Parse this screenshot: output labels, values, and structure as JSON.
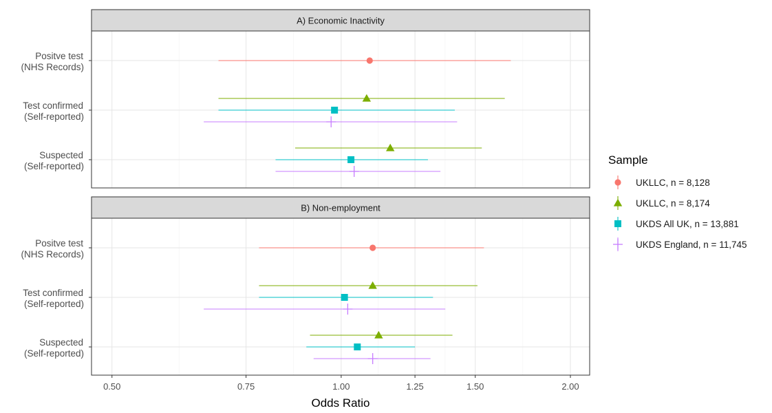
{
  "chart_data": {
    "type": "forest",
    "xlabel": "Odds Ratio",
    "x_scale": "log",
    "xlim": [
      0.47,
      2.12
    ],
    "x_ticks": [
      {
        "value": 0.5,
        "label": "0.50"
      },
      {
        "value": 0.75,
        "label": "0.75"
      },
      {
        "value": 1.0,
        "label": "1.00"
      },
      {
        "value": 1.25,
        "label": "1.25"
      },
      {
        "value": 1.5,
        "label": "1.50"
      },
      {
        "value": 2.0,
        "label": "2.00"
      }
    ],
    "grid": true,
    "legend": {
      "title": "Sample",
      "position": "right",
      "entries": [
        {
          "label": "UKLLC, n = 8,128",
          "color": "#F8766D",
          "shape": "circle"
        },
        {
          "label": "UKLLC, n = 8,174",
          "color": "#7CAE00",
          "shape": "triangle"
        },
        {
          "label": "UKDS All UK, n = 13,881",
          "color": "#00BFC4",
          "shape": "square"
        },
        {
          "label": "UKDS England, n = 11,745",
          "color": "#C77CFF",
          "shape": "plus"
        }
      ]
    },
    "categories": [
      {
        "line1": "Positve test",
        "line2": "(NHS Records)"
      },
      {
        "line1": "Test confirmed",
        "line2": "(Self-reported)"
      },
      {
        "line1": "Suspected",
        "line2": "(Self-reported)"
      }
    ],
    "panels": [
      {
        "title": "A) Economic Inactivity",
        "groups": [
          {
            "category": 0,
            "estimates": [
              {
                "series": 0,
                "or": 1.09,
                "lower": 0.69,
                "upper": 1.67
              }
            ]
          },
          {
            "category": 1,
            "estimates": [
              {
                "series": 1,
                "or": 1.08,
                "lower": 0.69,
                "upper": 1.64
              },
              {
                "series": 2,
                "or": 0.98,
                "lower": 0.69,
                "upper": 1.41
              },
              {
                "series": 3,
                "or": 0.97,
                "lower": 0.66,
                "upper": 1.42
              }
            ]
          },
          {
            "category": 2,
            "estimates": [
              {
                "series": 1,
                "or": 1.16,
                "lower": 0.87,
                "upper": 1.53
              },
              {
                "series": 2,
                "or": 1.03,
                "lower": 0.82,
                "upper": 1.3
              },
              {
                "series": 3,
                "or": 1.04,
                "lower": 0.82,
                "upper": 1.35
              }
            ]
          }
        ]
      },
      {
        "title": "B) Non-employment",
        "groups": [
          {
            "category": 0,
            "estimates": [
              {
                "series": 0,
                "or": 1.1,
                "lower": 0.78,
                "upper": 1.54
              }
            ]
          },
          {
            "category": 1,
            "estimates": [
              {
                "series": 1,
                "or": 1.1,
                "lower": 0.78,
                "upper": 1.51
              },
              {
                "series": 2,
                "or": 1.01,
                "lower": 0.78,
                "upper": 1.32
              },
              {
                "series": 3,
                "or": 1.02,
                "lower": 0.66,
                "upper": 1.37
              }
            ]
          },
          {
            "category": 2,
            "estimates": [
              {
                "series": 1,
                "or": 1.12,
                "lower": 0.91,
                "upper": 1.4
              },
              {
                "series": 2,
                "or": 1.05,
                "lower": 0.9,
                "upper": 1.25
              },
              {
                "series": 3,
                "or": 1.1,
                "lower": 0.92,
                "upper": 1.31
              }
            ]
          }
        ]
      }
    ]
  }
}
